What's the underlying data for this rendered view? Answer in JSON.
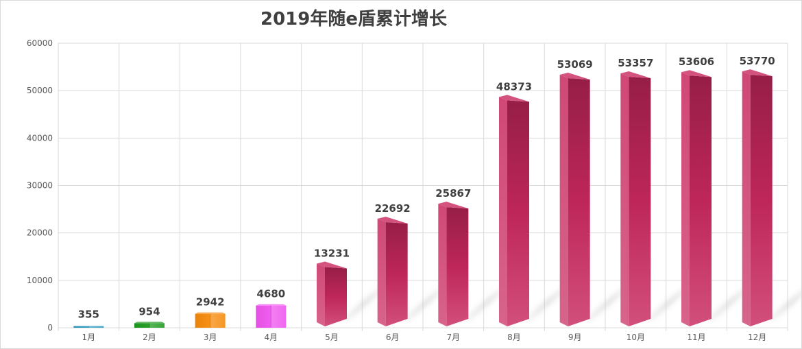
{
  "chart_data": {
    "type": "bar",
    "title": "2019年随e盾累计增长",
    "xlabel": "",
    "ylabel": "",
    "categories": [
      "1月",
      "2月",
      "3月",
      "4月",
      "5月",
      "6月",
      "7月",
      "8月",
      "9月",
      "10月",
      "11月",
      "12月"
    ],
    "values": [
      355,
      954,
      2942,
      4680,
      13231,
      22692,
      25867,
      48373,
      53069,
      53357,
      53606,
      53770
    ],
    "ylim": [
      0,
      60000
    ],
    "yticks": [
      "0",
      "10000",
      "20000",
      "30000",
      "40000",
      "50000",
      "60000"
    ],
    "grid": true,
    "legend": "none",
    "bar_style": "3d-prism",
    "colors": [
      "#2e9bbf",
      "#1e9a1e",
      "#f58a0b",
      "#ee55ee",
      "#c8285e",
      "#c8285e",
      "#c8285e",
      "#c8285e",
      "#c8285e",
      "#c8285e",
      "#c8285e",
      "#c8285e"
    ]
  }
}
